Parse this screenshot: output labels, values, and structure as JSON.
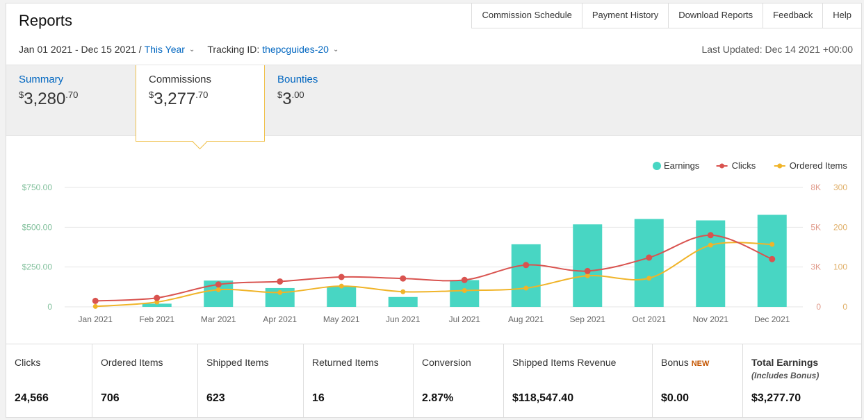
{
  "header": {
    "title": "Reports"
  },
  "nav": [
    {
      "label": "Commission Schedule"
    },
    {
      "label": "Payment History"
    },
    {
      "label": "Download Reports"
    },
    {
      "label": "Feedback"
    },
    {
      "label": "Help"
    }
  ],
  "filters": {
    "date_range": "Jan 01 2021 - Dec 15 2021 /",
    "period": "This Year",
    "tracking_label": "Tracking ID:",
    "tracking_id": "thepcguides-20",
    "last_updated": "Last Updated: Dec 14 2021 +00:00"
  },
  "tabs": [
    {
      "label": "Summary",
      "currency": "$",
      "whole": "3,280",
      "cents": ".70"
    },
    {
      "label": "Commissions",
      "currency": "$",
      "whole": "3,277",
      "cents": ".70"
    },
    {
      "label": "Bounties",
      "currency": "$",
      "whole": "3",
      "cents": ".00"
    }
  ],
  "stats": [
    {
      "label": "Clicks",
      "value": "24,566"
    },
    {
      "label": "Ordered Items",
      "value": "706"
    },
    {
      "label": "Shipped Items",
      "value": "623"
    },
    {
      "label": "Returned Items",
      "value": "16"
    },
    {
      "label": "Conversion",
      "value": "2.87%"
    },
    {
      "label": "Shipped Items Revenue",
      "value": "$118,547.40"
    },
    {
      "label": "Bonus",
      "badge": "NEW",
      "value": "$0.00"
    },
    {
      "label": "Total Earnings",
      "sub": "(Includes Bonus)",
      "value": "$3,277.70"
    }
  ],
  "colors": {
    "earnings": "#48d6c3",
    "clicks": "#d9534f",
    "ordered": "#f0b429",
    "link": "#0066c0",
    "active_border": "#f0c14b"
  },
  "chart_data": {
    "type": "bar",
    "categories": [
      "Jan 2021",
      "Feb 2021",
      "Mar 2021",
      "Apr 2021",
      "May 2021",
      "Jun 2021",
      "Jul 2021",
      "Aug 2021",
      "Sep 2021",
      "Oct 2021",
      "Nov 2021",
      "Dec 2021"
    ],
    "legend": [
      "Earnings",
      "Clicks",
      "Ordered Items"
    ],
    "legend_position": "top-right",
    "grid": true,
    "series": [
      {
        "name": "Earnings",
        "type": "bar",
        "axis": "left",
        "values": [
          0,
          20,
          165,
          118,
          128,
          62,
          168,
          393,
          518,
          552,
          543,
          578
        ]
      },
      {
        "name": "Clicks",
        "type": "line",
        "axis": "right-clicks",
        "values": [
          400,
          600,
          1500,
          1700,
          2000,
          1900,
          1800,
          2800,
          2400,
          3300,
          4800,
          3200
        ]
      },
      {
        "name": "Ordered Items",
        "type": "line",
        "axis": "right-items",
        "values": [
          1,
          12,
          43,
          36,
          52,
          38,
          41,
          47,
          78,
          72,
          155,
          157
        ]
      }
    ],
    "y_left": {
      "ticks": [
        "0",
        "$250.00",
        "$500.00",
        "$750.00"
      ],
      "range": [
        0,
        750
      ]
    },
    "y_right_clicks": {
      "ticks": [
        "0",
        "3K",
        "5K",
        "8K"
      ],
      "range": [
        0,
        8000
      ]
    },
    "y_right_items": {
      "ticks": [
        "0",
        "100",
        "200",
        "300"
      ],
      "range": [
        0,
        300
      ]
    }
  }
}
